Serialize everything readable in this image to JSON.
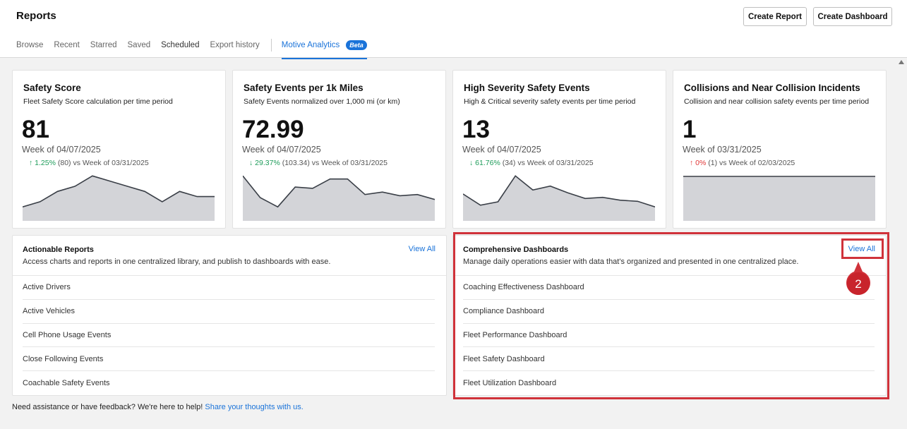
{
  "header": {
    "title": "Reports",
    "create_report": "Create Report",
    "create_dashboard": "Create Dashboard"
  },
  "tabs": [
    {
      "label": "Browse"
    },
    {
      "label": "Recent"
    },
    {
      "label": "Starred"
    },
    {
      "label": "Saved"
    },
    {
      "label": "Scheduled"
    },
    {
      "label": "Export history"
    }
  ],
  "active_tab": {
    "label": "Motive Analytics",
    "badge": "Beta"
  },
  "cards": [
    {
      "title": "Safety Score",
      "subtitle": "Fleet Safety Score calculation per time period",
      "value": "81",
      "week": "Week of 04/07/2025",
      "arrow": "↑",
      "pct": "1.25%",
      "prev": "(80)",
      "compare": "vs Week of 03/31/2025",
      "trend": "up",
      "series": [
        58,
        59,
        61,
        62,
        64,
        63,
        62,
        61,
        59,
        61,
        60,
        60
      ]
    },
    {
      "title": "Safety Events per 1k Miles",
      "subtitle": "Safety Events normalized over 1,000 mi (or km)",
      "value": "72.99",
      "week": "Week of 04/07/2025",
      "arrow": "↓",
      "pct": "29.37%",
      "prev": "(103.34)",
      "compare": "vs Week of 03/31/2025",
      "trend": "down",
      "series": [
        110,
        75,
        60,
        92,
        90,
        105,
        105,
        80,
        84,
        78,
        80,
        72
      ]
    },
    {
      "title": "High Severity Safety Events",
      "subtitle": "High & Critical severity safety events per time period",
      "value": "13",
      "week": "Week of 04/07/2025",
      "arrow": "↓",
      "pct": "61.76%",
      "prev": "(34)",
      "compare": "vs Week of 03/31/2025",
      "trend": "down",
      "series": [
        28,
        8,
        14,
        60,
        35,
        42,
        30,
        20,
        22,
        17,
        15,
        5
      ]
    },
    {
      "title": "Collisions and Near Collision Incidents",
      "subtitle": "Collision and near collision safety events per time period",
      "value": "1",
      "week": "Week of 03/31/2025",
      "arrow": "↑",
      "pct": "0%",
      "prev": "(1)",
      "compare": "vs Week of 02/03/2025",
      "trend": "flat",
      "series": [
        1,
        1
      ]
    }
  ],
  "actionable": {
    "title": "Actionable Reports",
    "subtitle": "Access charts and reports in one centralized library, and publish to dashboards with ease.",
    "view_all": "View All",
    "items": [
      "Active Drivers",
      "Active Vehicles",
      "Cell Phone Usage Events",
      "Close Following Events",
      "Coachable Safety Events"
    ]
  },
  "dashboards": {
    "title": "Comprehensive Dashboards",
    "subtitle": "Manage daily operations easier with data that's organized and presented in one centralized place.",
    "view_all": "View All",
    "items": [
      "Coaching Effectiveness Dashboard",
      "Compliance Dashboard",
      "Fleet Performance Dashboard",
      "Fleet Safety Dashboard",
      "Fleet Utilization Dashboard"
    ]
  },
  "step_badge": "2",
  "footer": {
    "text": "Need assistance or have feedback? We're here to help!",
    "link": "Share your thoughts with us."
  },
  "colors": {
    "accent": "#1a73d9",
    "up_green": "#1e9c5a",
    "alert_red": "#e03636",
    "highlight_red": "#d0323a"
  }
}
